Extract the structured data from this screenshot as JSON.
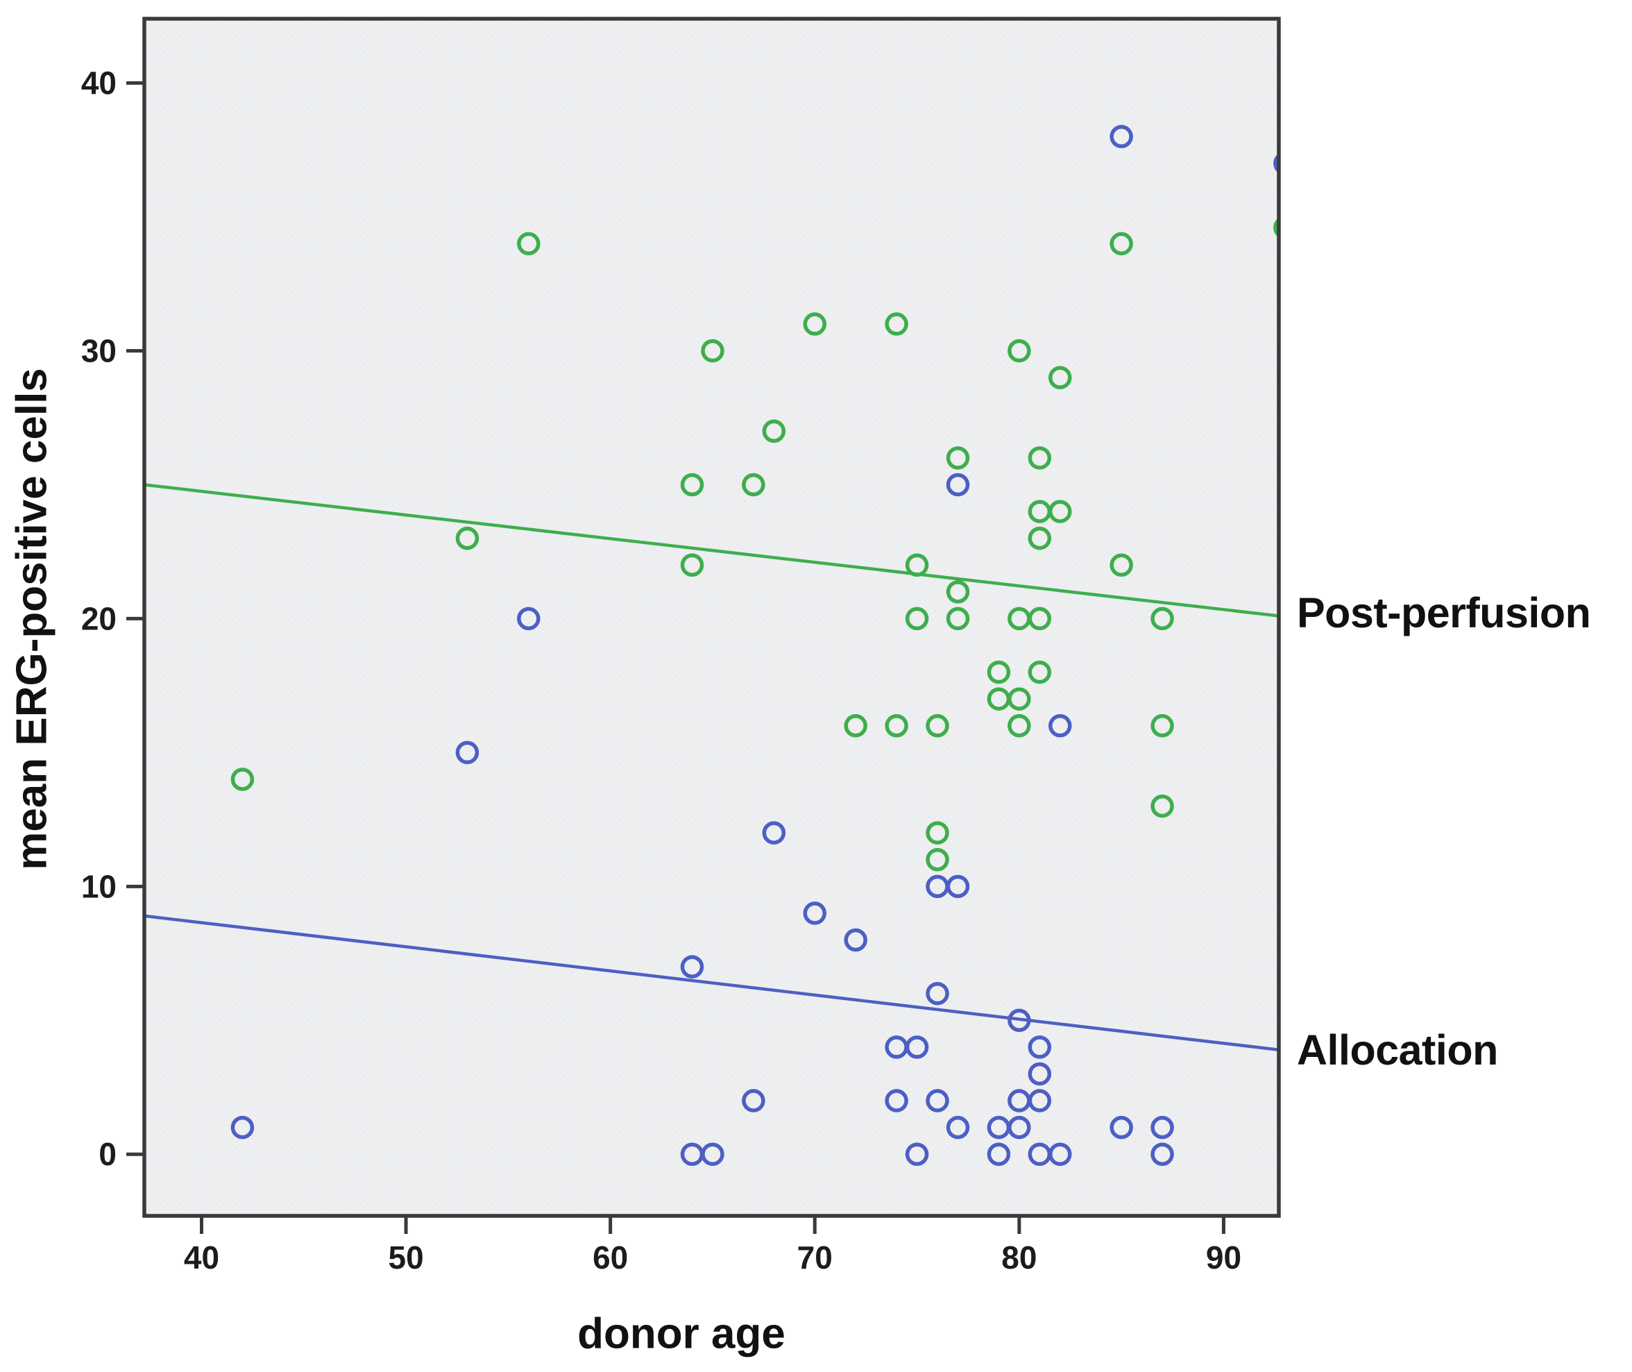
{
  "chart_data": {
    "type": "scatter",
    "title": "",
    "xlabel": "donor age",
    "ylabel": "mean ERG-positive cells",
    "x_ticks": [
      40,
      50,
      60,
      70,
      80,
      90
    ],
    "y_ticks": [
      0,
      10,
      20,
      30,
      40
    ],
    "x_axis_range": [
      37.2,
      92.7
    ],
    "y_axis_range": [
      -2.3,
      42.4
    ],
    "grid": false,
    "legend_position": "right-outside",
    "series_labels": {
      "post_perfusion": "Post-perfusion",
      "allocation": "Allocation"
    },
    "colors": {
      "post_perfusion": "#3eae4c",
      "allocation": "#4d5fc4",
      "frame": "#3a3a3a",
      "tick_label": "#1c1c1c",
      "plot_background": "#edeff1"
    },
    "series": [
      {
        "name": "Post-perfusion",
        "marker": "open-circle",
        "color": "#3eae4c",
        "points": [
          [
            42,
            14
          ],
          [
            53,
            23
          ],
          [
            56,
            34
          ],
          [
            64,
            25
          ],
          [
            64,
            22
          ],
          [
            65,
            30
          ],
          [
            67,
            25
          ],
          [
            68,
            27
          ],
          [
            70,
            31
          ],
          [
            72,
            16
          ],
          [
            74,
            31
          ],
          [
            74,
            16
          ],
          [
            75,
            22
          ],
          [
            75,
            20
          ],
          [
            76,
            16
          ],
          [
            76,
            12
          ],
          [
            76,
            11
          ],
          [
            77,
            26
          ],
          [
            77,
            21
          ],
          [
            77,
            20
          ],
          [
            79,
            18
          ],
          [
            79,
            17
          ],
          [
            80,
            30
          ],
          [
            80,
            20
          ],
          [
            80,
            17
          ],
          [
            80,
            16
          ],
          [
            81,
            26
          ],
          [
            81,
            24
          ],
          [
            81,
            23
          ],
          [
            81,
            20
          ],
          [
            81,
            18
          ],
          [
            82,
            29
          ],
          [
            82,
            24
          ],
          [
            85,
            34
          ],
          [
            85,
            22
          ],
          [
            87,
            20
          ],
          [
            87,
            16
          ],
          [
            87,
            13
          ]
        ],
        "edge_clipped_point": [
          93.0,
          34.6
        ],
        "trend_line": {
          "x": [
            37.2,
            92.7
          ],
          "y": [
            25.0,
            20.1
          ]
        }
      },
      {
        "name": "Allocation",
        "marker": "open-circle",
        "color": "#4d5fc4",
        "points": [
          [
            42,
            1
          ],
          [
            53,
            15
          ],
          [
            56,
            20
          ],
          [
            64,
            7
          ],
          [
            64,
            0
          ],
          [
            65,
            0
          ],
          [
            67,
            2
          ],
          [
            68,
            12
          ],
          [
            70,
            9
          ],
          [
            72,
            8
          ],
          [
            74,
            4
          ],
          [
            74,
            2
          ],
          [
            75,
            4
          ],
          [
            75,
            0
          ],
          [
            76,
            10
          ],
          [
            76,
            6
          ],
          [
            76,
            2
          ],
          [
            77,
            25
          ],
          [
            77,
            10
          ],
          [
            77,
            1
          ],
          [
            79,
            1
          ],
          [
            79,
            0
          ],
          [
            80,
            5
          ],
          [
            80,
            2
          ],
          [
            80,
            1
          ],
          [
            81,
            4
          ],
          [
            81,
            3
          ],
          [
            81,
            2
          ],
          [
            81,
            0
          ],
          [
            82,
            16
          ],
          [
            82,
            0
          ],
          [
            85,
            38
          ],
          [
            85,
            1
          ],
          [
            87,
            1
          ],
          [
            87,
            0
          ]
        ],
        "edge_clipped_point": [
          93.0,
          37.0
        ],
        "trend_line": {
          "x": [
            37.2,
            92.7
          ],
          "y": [
            8.9,
            3.9
          ]
        }
      }
    ]
  }
}
